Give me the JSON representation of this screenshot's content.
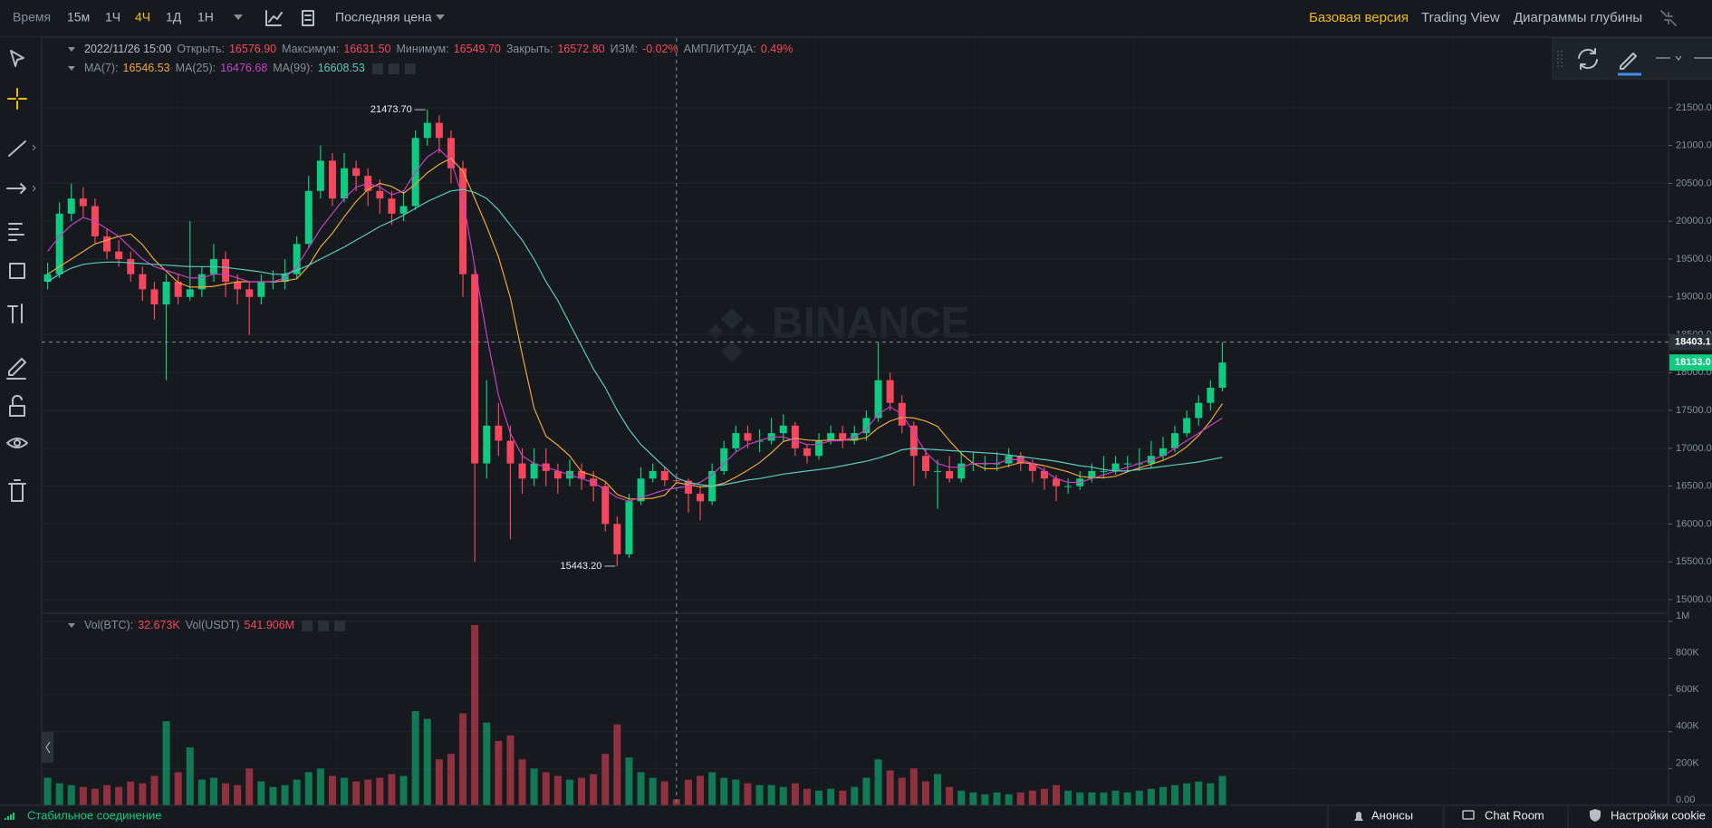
{
  "toolbar": {
    "intervals": [
      "Время",
      "15м",
      "1Ч",
      "4Ч",
      "1Д",
      "1Н"
    ],
    "active": "4Ч",
    "price_type": "Последняя цена"
  },
  "header_links": {
    "items": [
      "Базовая версия",
      "Trading View",
      "Диаграммы глубины"
    ],
    "active": "Базовая версия"
  },
  "watermark": "BINANCE",
  "chart_data": {
    "type": "candlestick",
    "up_color": "#0ecb81",
    "down_color": "#f6465d",
    "legend": {
      "date": "2022/11/26 15:00",
      "items": [
        {
          "label": "Открыть:",
          "value": "16576.90"
        },
        {
          "label": "Максимум:",
          "value": "16631.50"
        },
        {
          "label": "Минимум:",
          "value": "16549.70"
        },
        {
          "label": "Закрыть:",
          "value": "16572.80"
        },
        {
          "label": "ИЗМ:",
          "value": "-0.02%"
        },
        {
          "label": "АМПЛИТУДА:",
          "value": "0.49%"
        }
      ]
    },
    "ylim": [
      14820,
      22420
    ],
    "yticks": [
      {
        "value": 15000,
        "label": "15000.00"
      },
      {
        "value": 15500,
        "label": "15500.00"
      },
      {
        "value": 16000,
        "label": "16000.00"
      },
      {
        "value": 16500,
        "label": "16500.00"
      },
      {
        "value": 17000,
        "label": "17000.00"
      },
      {
        "value": 17500,
        "label": "17500.00"
      },
      {
        "value": 18000,
        "label": "18000.00"
      },
      {
        "value": 18500,
        "label": "18500.00"
      },
      {
        "value": 19000,
        "label": "19000.00"
      },
      {
        "value": 19500,
        "label": "19500.00"
      },
      {
        "value": 20000,
        "label": "20000.00"
      },
      {
        "value": 20500,
        "label": "20500.00"
      },
      {
        "value": 21000,
        "label": "21000.00"
      },
      {
        "value": 21500,
        "label": "21500.00"
      }
    ],
    "grid": true,
    "candles": [
      [
        19200,
        19450,
        19100,
        19300
      ],
      [
        19300,
        20250,
        19250,
        20100
      ],
      [
        20100,
        20500,
        20000,
        20300
      ],
      [
        20300,
        20450,
        20050,
        20200
      ],
      [
        20200,
        20300,
        19700,
        19800
      ],
      [
        19800,
        19900,
        19500,
        19600
      ],
      [
        19600,
        19750,
        19400,
        19500
      ],
      [
        19500,
        19600,
        19200,
        19300
      ],
      [
        19300,
        19400,
        18950,
        19100
      ],
      [
        19100,
        19200,
        18700,
        18900
      ],
      [
        18900,
        19300,
        17900,
        19200
      ],
      [
        19200,
        19300,
        18900,
        19000
      ],
      [
        19000,
        20000,
        18950,
        19100
      ],
      [
        19100,
        19400,
        19000,
        19300
      ],
      [
        19300,
        19700,
        19200,
        19500
      ],
      [
        19500,
        19600,
        19000,
        19200
      ],
      [
        19200,
        19300,
        18900,
        19100
      ],
      [
        19100,
        19200,
        18500,
        19000
      ],
      [
        19000,
        19300,
        18900,
        19200
      ],
      [
        19200,
        19350,
        19100,
        19200
      ],
      [
        19200,
        19500,
        19100,
        19300
      ],
      [
        19300,
        19800,
        19250,
        19700
      ],
      [
        19700,
        20600,
        19650,
        20400
      ],
      [
        20400,
        21000,
        20300,
        20800
      ],
      [
        20800,
        20900,
        20200,
        20300
      ],
      [
        20300,
        20900,
        20250,
        20700
      ],
      [
        20700,
        20800,
        20400,
        20600
      ],
      [
        20600,
        20700,
        20200,
        20400
      ],
      [
        20400,
        20550,
        20100,
        20300
      ],
      [
        20300,
        20400,
        19950,
        20100
      ],
      [
        20100,
        20400,
        20000,
        20200
      ],
      [
        20200,
        21200,
        20150,
        21100
      ],
      [
        21100,
        21473.7,
        21000,
        21300
      ],
      [
        21300,
        21400,
        20900,
        21100
      ],
      [
        21100,
        21200,
        20500,
        20700
      ],
      [
        20700,
        20800,
        19000,
        19300
      ],
      [
        19300,
        19400,
        15500,
        16800
      ],
      [
        16800,
        17900,
        16600,
        17300
      ],
      [
        17300,
        17600,
        16900,
        17100
      ],
      [
        17100,
        17300,
        15800,
        16800
      ],
      [
        16800,
        17000,
        16400,
        16600
      ],
      [
        16600,
        17000,
        16500,
        16800
      ],
      [
        16800,
        17000,
        16500,
        16700
      ],
      [
        16700,
        16800,
        16400,
        16600
      ],
      [
        16600,
        16850,
        16500,
        16700
      ],
      [
        16700,
        16800,
        16450,
        16600
      ],
      [
        16600,
        16700,
        16300,
        16500
      ],
      [
        16500,
        16550,
        15900,
        16000
      ],
      [
        16000,
        16100,
        15443.2,
        15600
      ],
      [
        15600,
        16400,
        15550,
        16300
      ],
      [
        16300,
        16750,
        16250,
        16600
      ],
      [
        16600,
        16800,
        16550,
        16700
      ],
      [
        16700,
        16750,
        16500,
        16576.9
      ],
      [
        16576.9,
        16631.5,
        16549.7,
        16572.8
      ],
      [
        16572.8,
        16600,
        16150,
        16400
      ],
      [
        16400,
        16500,
        16050,
        16300
      ],
      [
        16300,
        16800,
        16250,
        16700
      ],
      [
        16700,
        17100,
        16650,
        17000
      ],
      [
        17000,
        17300,
        16950,
        17200
      ],
      [
        17200,
        17300,
        17000,
        17100
      ],
      [
        17100,
        17250,
        16950,
        17100
      ],
      [
        17100,
        17400,
        17050,
        17200
      ],
      [
        17200,
        17450,
        17100,
        17300
      ],
      [
        17300,
        17350,
        16900,
        17000
      ],
      [
        17000,
        17050,
        16800,
        16900
      ],
      [
        16900,
        17200,
        16850,
        17100
      ],
      [
        17100,
        17300,
        17050,
        17200
      ],
      [
        17200,
        17300,
        17000,
        17100
      ],
      [
        17100,
        17300,
        17050,
        17200
      ],
      [
        17200,
        17500,
        17100,
        17400
      ],
      [
        17400,
        18400,
        17350,
        17900
      ],
      [
        17900,
        18000,
        17500,
        17600
      ],
      [
        17600,
        17700,
        17200,
        17300
      ],
      [
        17300,
        17350,
        16500,
        16900
      ],
      [
        16900,
        17000,
        16600,
        16700
      ],
      [
        16700,
        16850,
        16200,
        16700
      ],
      [
        16700,
        16900,
        16550,
        16600
      ],
      [
        16600,
        16950,
        16550,
        16800
      ],
      [
        16800,
        16950,
        16700,
        16800
      ],
      [
        16800,
        16900,
        16700,
        16800
      ],
      [
        16800,
        16950,
        16700,
        16800
      ],
      [
        16800,
        17000,
        16750,
        16900
      ],
      [
        16900,
        16950,
        16700,
        16800
      ],
      [
        16800,
        16850,
        16550,
        16700
      ],
      [
        16700,
        16750,
        16450,
        16600
      ],
      [
        16600,
        16650,
        16300,
        16500
      ],
      [
        16500,
        16600,
        16400,
        16500
      ],
      [
        16500,
        16700,
        16450,
        16600
      ],
      [
        16600,
        16800,
        16550,
        16700
      ],
      [
        16700,
        16900,
        16600,
        16700
      ],
      [
        16700,
        16900,
        16650,
        16800
      ],
      [
        16800,
        16900,
        16700,
        16800
      ],
      [
        16800,
        17000,
        16700,
        16800
      ],
      [
        16800,
        17100,
        16750,
        16900
      ],
      [
        16900,
        17150,
        16850,
        17000
      ],
      [
        17000,
        17300,
        16950,
        17200
      ],
      [
        17200,
        17500,
        17150,
        17400
      ],
      [
        17400,
        17700,
        17300,
        17600
      ],
      [
        17600,
        17900,
        17500,
        17800
      ],
      [
        17800,
        18400,
        17750,
        18133
      ]
    ],
    "series": [
      {
        "name": "MA(7):",
        "value_label": "16546.53",
        "color": "#f0a53b",
        "values": [
          19300,
          19400,
          19500,
          19600,
          19700,
          19750,
          19800,
          19830,
          19690,
          19490,
          19340,
          19190,
          19130,
          19130,
          19140,
          19170,
          19200,
          19200,
          19200,
          19200,
          19210,
          19240,
          19410,
          19660,
          19840,
          20060,
          20260,
          20420,
          20500,
          20460,
          20370,
          20490,
          20640,
          20750,
          20830,
          20660,
          20300,
          19930,
          19530,
          18990,
          18240,
          17530,
          17160,
          17040,
          16900,
          16690,
          16640,
          16560,
          16390,
          16330,
          16330,
          16340,
          16380,
          16546.53,
          16520,
          16490,
          16500,
          16540,
          16620,
          16710,
          16810,
          16940,
          17090,
          17130,
          17110,
          17100,
          17110,
          17110,
          17110,
          17140,
          17270,
          17360,
          17410,
          17400,
          17360,
          17290,
          17100,
          16930,
          16800,
          16730,
          16730,
          16770,
          16810,
          16800,
          16770,
          16730,
          16690,
          16630,
          16610,
          16610,
          16630,
          16690,
          16740,
          16790,
          16840,
          16910,
          17020,
          17170,
          17360,
          17590
        ]
      },
      {
        "name": "MA(25):",
        "value_label": "16476.68",
        "color": "#c340c5",
        "values": [
          19600,
          19800,
          19950,
          20050,
          20000,
          19900,
          19800,
          19650,
          19500,
          19400,
          19350,
          19300,
          19250,
          19250,
          19300,
          19300,
          19250,
          19200,
          19200,
          19200,
          19250,
          19400,
          19650,
          19900,
          20100,
          20300,
          20450,
          20500,
          20450,
          20350,
          20400,
          20650,
          20850,
          20950,
          20800,
          20300,
          19400,
          18500,
          17700,
          17200,
          16900,
          16800,
          16750,
          16700,
          16650,
          16600,
          16550,
          16450,
          16350,
          16300,
          16350,
          16400,
          16450,
          16476.68,
          16500,
          16550,
          16650,
          16800,
          16950,
          17050,
          17100,
          17150,
          17150,
          17100,
          17050,
          17050,
          17100,
          17100,
          17150,
          17250,
          17450,
          17550,
          17450,
          17200,
          16950,
          16800,
          16750,
          16750,
          16800,
          16800,
          16800,
          16850,
          16850,
          16800,
          16700,
          16600,
          16550,
          16550,
          16600,
          16650,
          16700,
          16750,
          16800,
          16850,
          16900,
          17000,
          17100,
          17200,
          17300,
          17400
        ]
      },
      {
        "name": "MA(99):",
        "value_label": "16608.53",
        "color": "#5dc8c0",
        "values": [
          19200,
          19300,
          19380,
          19430,
          19450,
          19460,
          19460,
          19450,
          19440,
          19430,
          19420,
          19410,
          19400,
          19400,
          19400,
          19390,
          19370,
          19350,
          19330,
          19300,
          19300,
          19350,
          19420,
          19500,
          19580,
          19660,
          19750,
          19840,
          19930,
          20000,
          20080,
          20170,
          20260,
          20330,
          20400,
          20420,
          20380,
          20300,
          20150,
          19950,
          19750,
          19500,
          19200,
          18950,
          18650,
          18350,
          18050,
          17800,
          17500,
          17250,
          17050,
          16900,
          16750,
          16608.53,
          16550,
          16520,
          16500,
          16520,
          16550,
          16580,
          16600,
          16630,
          16660,
          16680,
          16700,
          16720,
          16740,
          16770,
          16800,
          16830,
          16870,
          16920,
          16980,
          17000,
          16990,
          16980,
          16970,
          16960,
          16950,
          16940,
          16930,
          16910,
          16890,
          16870,
          16850,
          16830,
          16800,
          16770,
          16750,
          16720,
          16700,
          16700,
          16720,
          16740,
          16760,
          16780,
          16800,
          16820,
          16850,
          16880
        ]
      }
    ],
    "annotations": [
      {
        "value": 21473.7,
        "label": "21473.70"
      },
      {
        "value": 15443.2,
        "label": "15443.20"
      }
    ],
    "price_markers": [
      {
        "value": 18403.1,
        "label": "18403.1",
        "color": "#2b3139"
      },
      {
        "value": 18133,
        "label": "18133.0",
        "color": "#0ecb81"
      }
    ],
    "volume": {
      "legend": [
        {
          "label": "Vol(BTC):",
          "value": "32.673K"
        },
        {
          "label": "Vol(USDT)",
          "value": "541.906M"
        }
      ],
      "ylim": [
        0,
        1044000
      ],
      "yticks": [
        {
          "value": 0,
          "label": "0.00"
        },
        {
          "value": 200000,
          "label": "200K"
        },
        {
          "value": 400000,
          "label": "400K"
        },
        {
          "value": 600000,
          "label": "600K"
        },
        {
          "value": 800000,
          "label": "800K"
        },
        {
          "value": 1000000,
          "label": "1M"
        }
      ],
      "values": [
        150000,
        120000,
        110000,
        100000,
        90000,
        110000,
        100000,
        130000,
        120000,
        160000,
        457000,
        180000,
        315000,
        140000,
        150000,
        120000,
        110000,
        200000,
        130000,
        100000,
        110000,
        140000,
        180000,
        200000,
        160000,
        150000,
        130000,
        140000,
        150000,
        170000,
        160000,
        512000,
        470000,
        250000,
        280000,
        500000,
        980000,
        450000,
        350000,
        380000,
        250000,
        200000,
        180000,
        160000,
        140000,
        150000,
        170000,
        280000,
        440000,
        260000,
        180000,
        150000,
        130000,
        32673,
        140000,
        160000,
        180000,
        150000,
        140000,
        120000,
        110000,
        110000,
        100000,
        120000,
        90000,
        80000,
        90000,
        80000,
        100000,
        150000,
        250000,
        190000,
        150000,
        200000,
        130000,
        170000,
        100000,
        80000,
        70000,
        60000,
        70000,
        60000,
        70000,
        80000,
        90000,
        110000,
        80000,
        70000,
        70000,
        70000,
        80000,
        70000,
        80000,
        90000,
        100000,
        110000,
        120000,
        130000,
        120000,
        160000
      ]
    }
  },
  "status_bar": {
    "connection": "Стабильное соединение",
    "links": [
      "Анонсы",
      "Chat Room",
      "Настройки cookie"
    ]
  }
}
